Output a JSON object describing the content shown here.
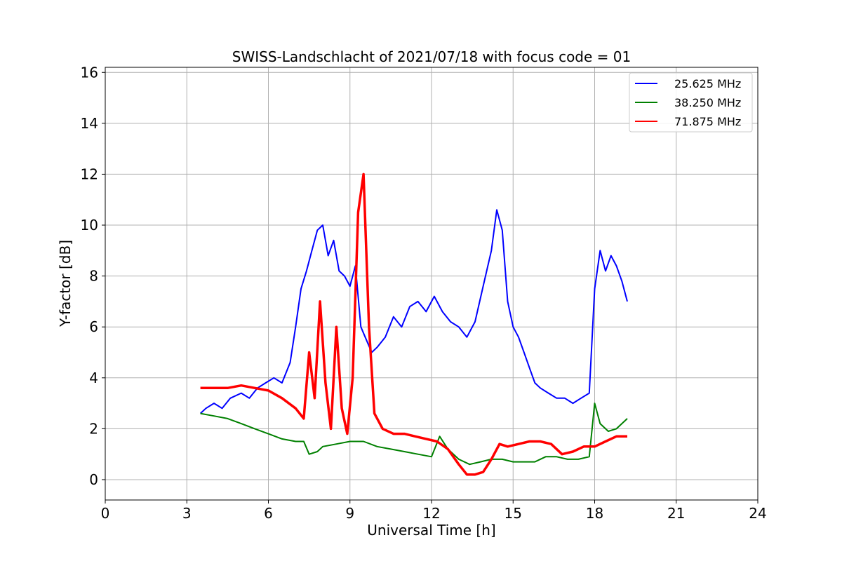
{
  "chart_data": {
    "type": "line",
    "title": "SWISS-Landschlacht of 2021/07/18 with focus code = 01",
    "xlabel": "Universal Time [h]",
    "ylabel": "Y-factor [dB]",
    "xlim": [
      0,
      24
    ],
    "ylim": [
      -0.8,
      16.2
    ],
    "xticks": [
      0,
      3,
      6,
      9,
      12,
      15,
      18,
      21,
      24
    ],
    "yticks": [
      0,
      2,
      4,
      6,
      8,
      10,
      12,
      14,
      16
    ],
    "grid": true,
    "legend_position": "top-right",
    "series": [
      {
        "name": "25.625 MHz",
        "color": "#0000ff",
        "x": [
          3.5,
          3.7,
          4.0,
          4.3,
          4.6,
          5.0,
          5.3,
          5.6,
          5.9,
          6.2,
          6.5,
          6.8,
          7.0,
          7.2,
          7.4,
          7.6,
          7.8,
          8.0,
          8.2,
          8.4,
          8.6,
          8.8,
          9.0,
          9.2,
          9.4,
          9.6,
          9.8,
          10.0,
          10.3,
          10.6,
          10.9,
          11.2,
          11.5,
          11.8,
          12.1,
          12.4,
          12.7,
          13.0,
          13.3,
          13.6,
          13.9,
          14.2,
          14.4,
          14.6,
          14.8,
          15.0,
          15.2,
          15.4,
          15.6,
          15.8,
          16.0,
          16.3,
          16.6,
          16.9,
          17.2,
          17.5,
          17.8,
          18.0,
          18.2,
          18.4,
          18.6,
          18.8,
          19.0,
          19.2
        ],
        "y": [
          2.6,
          2.8,
          3.0,
          2.8,
          3.2,
          3.4,
          3.2,
          3.6,
          3.8,
          4.0,
          3.8,
          4.6,
          6.0,
          7.5,
          8.2,
          9.0,
          9.8,
          10.0,
          8.8,
          9.4,
          8.2,
          8.0,
          7.6,
          8.4,
          6.0,
          5.5,
          5.0,
          5.2,
          5.6,
          6.4,
          6.0,
          6.8,
          7.0,
          6.6,
          7.2,
          6.6,
          6.2,
          6.0,
          5.6,
          6.2,
          7.6,
          9.0,
          10.6,
          9.8,
          7.0,
          6.0,
          5.6,
          5.0,
          4.4,
          3.8,
          3.6,
          3.4,
          3.2,
          3.2,
          3.0,
          3.2,
          3.4,
          7.5,
          9.0,
          8.2,
          8.8,
          8.4,
          7.8,
          7.0
        ]
      },
      {
        "name": "38.250 MHz",
        "color": "#008000",
        "x": [
          3.5,
          4.0,
          4.5,
          5.0,
          5.5,
          6.0,
          6.5,
          7.0,
          7.3,
          7.5,
          7.8,
          8.0,
          8.5,
          9.0,
          9.5,
          10.0,
          10.5,
          11.0,
          11.5,
          12.0,
          12.3,
          12.6,
          13.0,
          13.4,
          13.8,
          14.2,
          14.6,
          15.0,
          15.4,
          15.8,
          16.2,
          16.6,
          17.0,
          17.4,
          17.8,
          18.0,
          18.2,
          18.5,
          18.8,
          19.2
        ],
        "y": [
          2.6,
          2.5,
          2.4,
          2.2,
          2.0,
          1.8,
          1.6,
          1.5,
          1.5,
          1.0,
          1.1,
          1.3,
          1.4,
          1.5,
          1.5,
          1.3,
          1.2,
          1.1,
          1.0,
          0.9,
          1.7,
          1.2,
          0.8,
          0.6,
          0.7,
          0.8,
          0.8,
          0.7,
          0.7,
          0.7,
          0.9,
          0.9,
          0.8,
          0.8,
          0.9,
          3.0,
          2.2,
          1.9,
          2.0,
          2.4
        ]
      },
      {
        "name": "71.875 MHz",
        "color": "#ff0000",
        "x": [
          3.5,
          4.0,
          4.5,
          5.0,
          5.5,
          6.0,
          6.5,
          7.0,
          7.3,
          7.5,
          7.7,
          7.9,
          8.1,
          8.3,
          8.5,
          8.7,
          8.9,
          9.1,
          9.3,
          9.5,
          9.7,
          9.9,
          10.2,
          10.6,
          11.0,
          11.4,
          11.8,
          12.2,
          12.6,
          13.0,
          13.3,
          13.6,
          13.9,
          14.2,
          14.5,
          14.8,
          15.2,
          15.6,
          16.0,
          16.4,
          16.8,
          17.2,
          17.6,
          18.0,
          18.4,
          18.8,
          19.2
        ],
        "y": [
          3.6,
          3.6,
          3.6,
          3.7,
          3.6,
          3.5,
          3.2,
          2.8,
          2.4,
          5.0,
          3.2,
          7.0,
          3.8,
          2.0,
          6.0,
          2.8,
          1.8,
          4.0,
          10.5,
          12.0,
          6.0,
          2.6,
          2.0,
          1.8,
          1.8,
          1.7,
          1.6,
          1.5,
          1.2,
          0.6,
          0.2,
          0.2,
          0.3,
          0.8,
          1.4,
          1.3,
          1.4,
          1.5,
          1.5,
          1.4,
          1.0,
          1.1,
          1.3,
          1.3,
          1.5,
          1.7,
          1.7
        ]
      }
    ]
  }
}
